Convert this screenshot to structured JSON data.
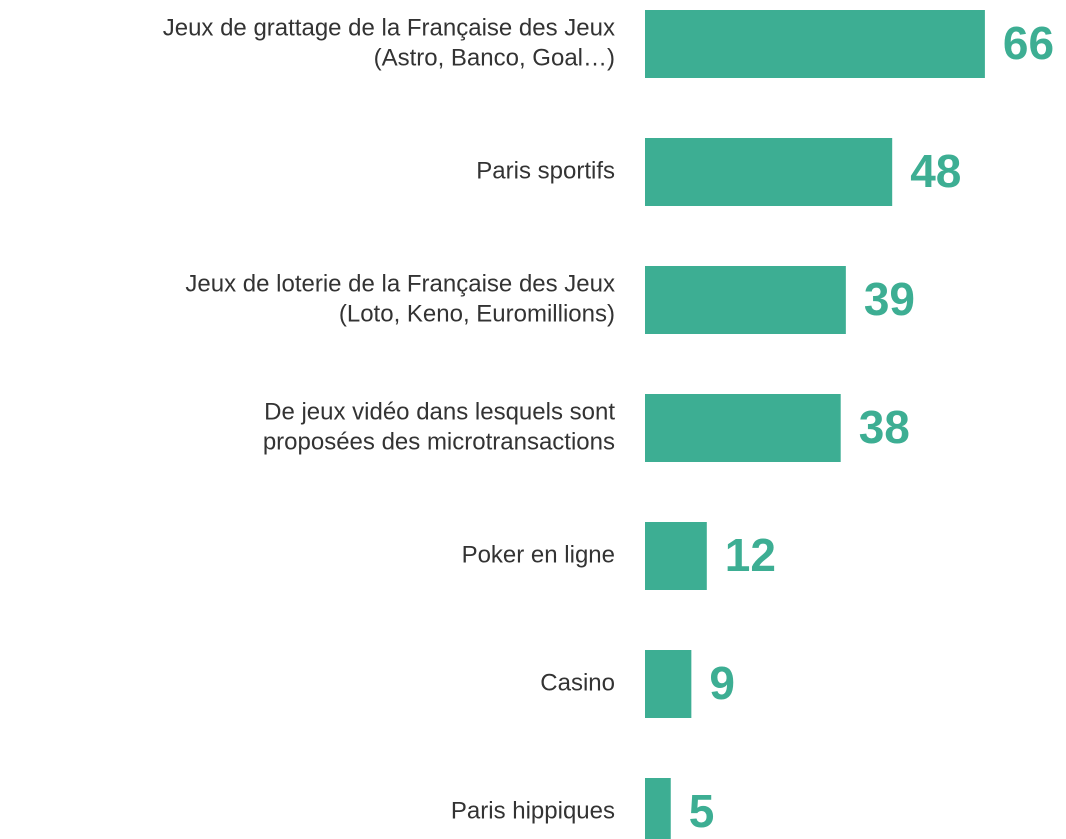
{
  "chart_data": {
    "type": "bar",
    "categories": [
      [
        "Jeux de grattage de la Française des Jeux",
        "(Astro, Banco, Goal…)"
      ],
      [
        "Paris sportifs"
      ],
      [
        "Jeux de loterie de la Française des Jeux",
        "(Loto, Keno, Euromillions)"
      ],
      [
        "De jeux vidéo dans lesquels sont",
        "proposées des microtransactions"
      ],
      [
        "Poker en ligne"
      ],
      [
        "Casino"
      ],
      [
        "Paris hippiques"
      ]
    ],
    "values": [
      66,
      48,
      39,
      38,
      12,
      9,
      5
    ],
    "color": "#3dae93"
  }
}
